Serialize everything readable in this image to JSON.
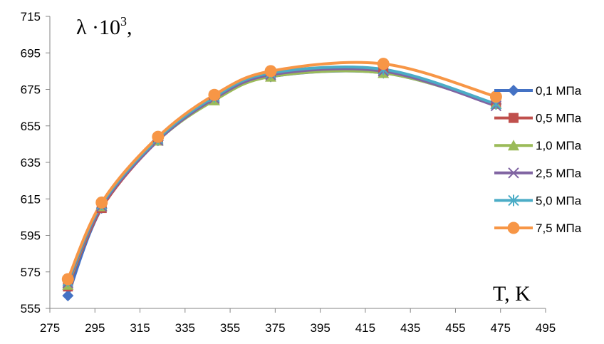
{
  "chart_data": {
    "type": "line",
    "title": "",
    "ylabel_text": "λ ·10",
    "ylabel_sup": "3",
    "ylabel_suffix": ",",
    "xlabel": "T, K",
    "xlim": [
      275,
      495
    ],
    "ylim": [
      555,
      715
    ],
    "x_ticks": [
      275,
      295,
      315,
      335,
      355,
      375,
      395,
      415,
      435,
      455,
      475,
      495
    ],
    "y_ticks": [
      555,
      575,
      595,
      615,
      635,
      655,
      675,
      695,
      715
    ],
    "grid": false,
    "legend_position": "right",
    "x": [
      283,
      298,
      323,
      348,
      373,
      423,
      473
    ],
    "series": [
      {
        "name": "0,1 МПа",
        "color": "#4472C4",
        "marker": "diamond",
        "values": [
          562,
          610,
          647,
          670,
          682,
          684,
          667
        ]
      },
      {
        "name": "0,5 МПа",
        "color": "#C0504D",
        "marker": "square",
        "values": [
          567,
          610,
          647,
          670,
          682,
          685,
          667
        ]
      },
      {
        "name": "1,0 МПа",
        "color": "#9BBB59",
        "marker": "triangle",
        "values": [
          568,
          611,
          647,
          669,
          682,
          684,
          667
        ]
      },
      {
        "name": "2,5 МПа",
        "color": "#8064A2",
        "marker": "x",
        "values": [
          569,
          611,
          647,
          670,
          683,
          685,
          666
        ]
      },
      {
        "name": "5,0 МПа",
        "color": "#4BACC6",
        "marker": "star",
        "values": [
          570,
          612,
          648,
          671,
          684,
          686,
          667
        ]
      },
      {
        "name": "7,5 МПа",
        "color": "#F79646",
        "marker": "circle",
        "values": [
          571,
          613,
          649,
          672,
          685,
          689,
          671
        ]
      }
    ]
  }
}
